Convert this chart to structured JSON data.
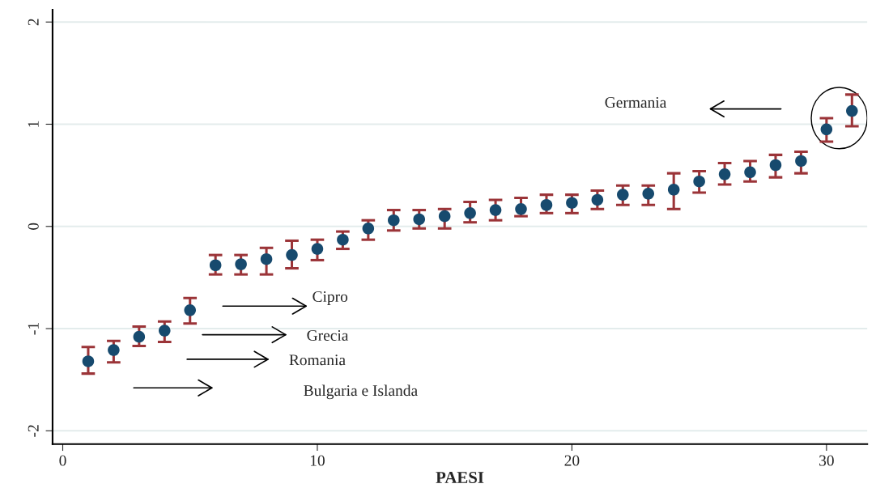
{
  "chart_data": {
    "type": "scatter",
    "xlabel": "PAESI",
    "x": [
      1,
      2,
      3,
      4,
      5,
      6,
      7,
      8,
      9,
      10,
      11,
      12,
      13,
      14,
      15,
      16,
      17,
      18,
      19,
      20,
      21,
      22,
      23,
      24,
      25,
      26,
      27,
      28,
      29,
      30,
      31
    ],
    "series": [
      {
        "color": "#174a6e",
        "values": [
          -1.32,
          -1.21,
          -1.08,
          -1.02,
          -0.82,
          -0.38,
          -0.37,
          -0.32,
          -0.28,
          -0.22,
          -0.13,
          -0.02,
          0.06,
          0.07,
          0.1,
          0.13,
          0.16,
          0.17,
          0.21,
          0.23,
          0.26,
          0.31,
          0.32,
          0.36,
          0.44,
          0.51,
          0.53,
          0.6,
          0.64,
          0.95,
          1.13
        ],
        "errors": [
          [
            -1.44,
            -1.18
          ],
          [
            -1.33,
            -1.12
          ],
          [
            -1.17,
            -0.98
          ],
          [
            -1.13,
            -0.93
          ],
          [
            -0.95,
            -0.7
          ],
          [
            -0.47,
            -0.28
          ],
          [
            -0.47,
            -0.28
          ],
          [
            -0.47,
            -0.21
          ],
          [
            -0.41,
            -0.14
          ],
          [
            -0.33,
            -0.13
          ],
          [
            -0.22,
            -0.05
          ],
          [
            -0.13,
            0.06
          ],
          [
            -0.04,
            0.16
          ],
          [
            -0.02,
            0.16
          ],
          [
            -0.02,
            0.17
          ],
          [
            0.04,
            0.24
          ],
          [
            0.06,
            0.26
          ],
          [
            0.1,
            0.28
          ],
          [
            0.13,
            0.31
          ],
          [
            0.13,
            0.31
          ],
          [
            0.17,
            0.35
          ],
          [
            0.21,
            0.4
          ],
          [
            0.21,
            0.4
          ],
          [
            0.17,
            0.52
          ],
          [
            0.33,
            0.54
          ],
          [
            0.41,
            0.62
          ],
          [
            0.44,
            0.64
          ],
          [
            0.48,
            0.7
          ],
          [
            0.52,
            0.73
          ],
          [
            0.83,
            1.06
          ],
          [
            0.98,
            1.29
          ]
        ]
      }
    ],
    "marker": "circle",
    "xlim": [
      -0.4,
      31.6
    ],
    "xticks": [
      0,
      10,
      20,
      30
    ],
    "ylim": [
      -2.13,
      2.12
    ],
    "yticks": [
      -2,
      -1,
      0,
      1,
      2
    ],
    "grid": "y",
    "annotations": [
      "Germania",
      "Cipro",
      "Grecia",
      "Romania",
      "Bulgaria e Islanda"
    ]
  }
}
